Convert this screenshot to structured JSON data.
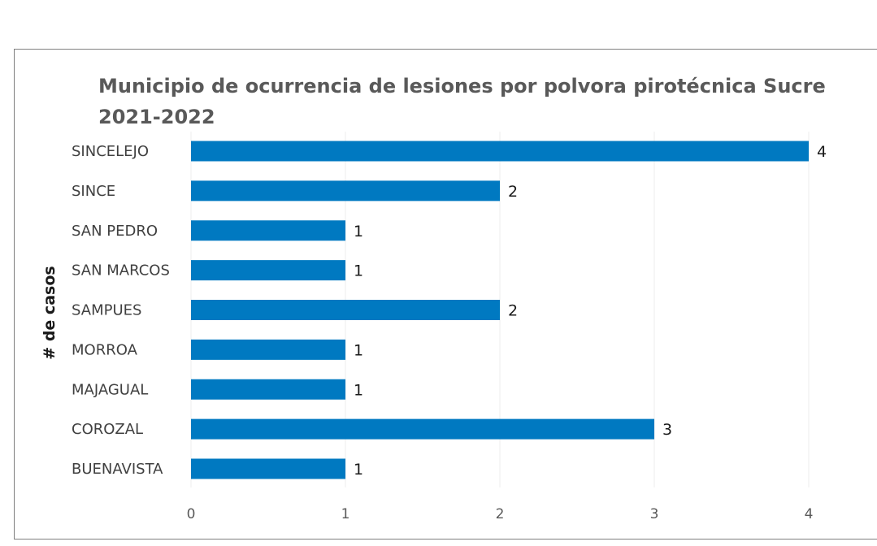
{
  "chart_data": {
    "type": "bar",
    "orientation": "horizontal",
    "title": "Municipio de ocurrencia de lesiones por polvora pirotécnica Sucre 2021-2022",
    "title_lines": [
      "Municipio de ocurrencia de lesiones por polvora pirotécnica Sucre",
      "2021-2022"
    ],
    "ylabel": "# de casos",
    "xlabel": "",
    "categories": [
      "SINCELEJO",
      "SINCE",
      "SAN PEDRO",
      "SAN MARCOS",
      "SAMPUES",
      "MORROA",
      "MAJAGUAL",
      "COROZAL",
      "BUENAVISTA"
    ],
    "values": [
      4,
      2,
      1,
      1,
      2,
      1,
      1,
      3,
      1
    ],
    "xlim": [
      0,
      4
    ],
    "xticks": [
      0,
      1,
      2,
      3,
      4
    ],
    "grid": true,
    "legend": "none",
    "bar_color": "#0079c1"
  }
}
